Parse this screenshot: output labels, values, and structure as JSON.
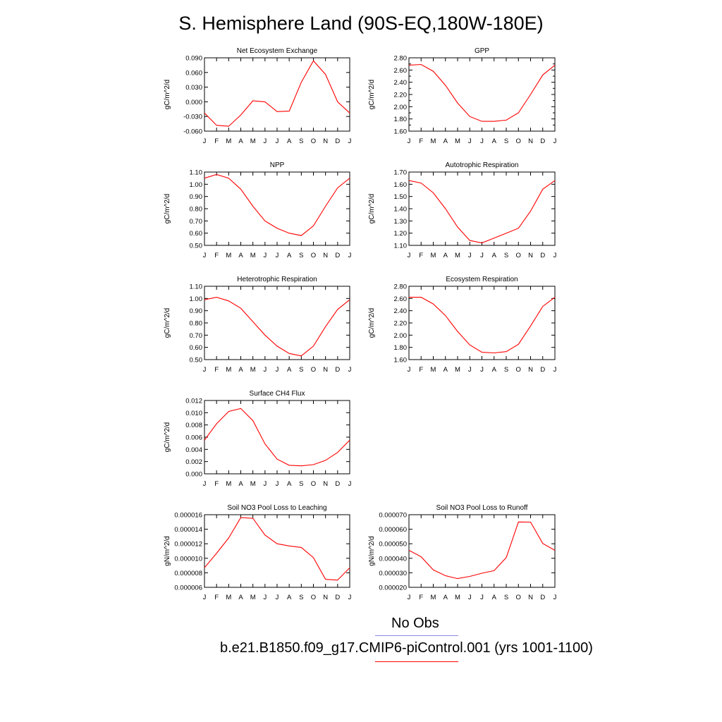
{
  "page": {
    "title": "S. Hemisphere Land (90S-EQ,180W-180E)",
    "legend": {
      "obs_label": "No Obs",
      "obs_color": "#8a8ae6",
      "model_label": "b.e21.B1850.f09_g17.CMIP6-piControl.001 (yrs 1001-1100)",
      "model_color": "#ff0000"
    }
  },
  "chart_data": [
    {
      "type": "line",
      "title": "Net Ecosystem Exchange",
      "ylabel": "gC/m^2/d",
      "x": [
        "J",
        "F",
        "M",
        "A",
        "M",
        "J",
        "J",
        "A",
        "S",
        "O",
        "N",
        "D",
        "J"
      ],
      "ylim": [
        -0.06,
        0.09
      ],
      "yticks": [
        "-0.060",
        "-0.030",
        "0.000",
        "0.030",
        "0.060",
        "0.090"
      ],
      "series": [
        {
          "values": [
            -0.023,
            -0.048,
            -0.05,
            -0.027,
            0.002,
            0.0,
            -0.02,
            -0.019,
            0.04,
            0.084,
            0.056,
            0.0,
            -0.023
          ],
          "color": "#ff0000"
        }
      ]
    },
    {
      "type": "line",
      "title": "GPP",
      "ylabel": "gC/m^2/d",
      "x": [
        "J",
        "F",
        "M",
        "A",
        "M",
        "J",
        "J",
        "A",
        "S",
        "O",
        "N",
        "D",
        "J"
      ],
      "ylim": [
        1.6,
        2.8
      ],
      "yticks": [
        "1.60",
        "1.70",
        "1.80",
        "1.90",
        "2.00",
        "2.10",
        "2.20",
        "2.30",
        "2.40",
        "2.50",
        "2.60",
        "2.70",
        "2.80"
      ],
      "ytick_labels": [
        "1.60",
        "1.80",
        "2.00",
        "2.20",
        "2.40",
        "2.60",
        "2.80"
      ],
      "series": [
        {
          "values": [
            2.68,
            2.69,
            2.58,
            2.35,
            2.06,
            1.84,
            1.76,
            1.76,
            1.78,
            1.9,
            2.2,
            2.52,
            2.68
          ],
          "color": "#ff0000"
        }
      ]
    },
    {
      "type": "line",
      "title": "NPP",
      "ylabel": "gC/m^2/d",
      "x": [
        "J",
        "F",
        "M",
        "A",
        "M",
        "J",
        "J",
        "A",
        "S",
        "O",
        "N",
        "D",
        "J"
      ],
      "ylim": [
        0.5,
        1.1
      ],
      "yticks": [
        "0.50",
        "0.60",
        "0.70",
        "0.80",
        "0.90",
        "1.00",
        "1.10"
      ],
      "series": [
        {
          "values": [
            1.05,
            1.08,
            1.05,
            0.96,
            0.82,
            0.7,
            0.64,
            0.6,
            0.58,
            0.66,
            0.82,
            0.97,
            1.05
          ],
          "color": "#ff0000"
        }
      ]
    },
    {
      "type": "line",
      "title": "Autotrophic Respiration",
      "ylabel": "gC/m^2/d",
      "x": [
        "J",
        "F",
        "M",
        "A",
        "M",
        "J",
        "J",
        "A",
        "S",
        "O",
        "N",
        "D",
        "J"
      ],
      "ylim": [
        1.1,
        1.7
      ],
      "yticks": [
        "1.10",
        "1.20",
        "1.30",
        "1.40",
        "1.50",
        "1.60",
        "1.70"
      ],
      "series": [
        {
          "values": [
            1.63,
            1.61,
            1.53,
            1.4,
            1.25,
            1.14,
            1.12,
            1.16,
            1.2,
            1.24,
            1.38,
            1.56,
            1.63
          ],
          "color": "#ff0000"
        }
      ]
    },
    {
      "type": "line",
      "title": "Heterotrophic Respiration",
      "ylabel": "gC/m^2/d",
      "x": [
        "J",
        "F",
        "M",
        "A",
        "M",
        "J",
        "J",
        "A",
        "S",
        "O",
        "N",
        "D",
        "J"
      ],
      "ylim": [
        0.5,
        1.1
      ],
      "yticks": [
        "0.50",
        "0.60",
        "0.70",
        "0.80",
        "0.90",
        "1.00",
        "1.10"
      ],
      "series": [
        {
          "values": [
            0.99,
            1.01,
            0.98,
            0.92,
            0.81,
            0.7,
            0.61,
            0.55,
            0.53,
            0.61,
            0.77,
            0.91,
            0.99
          ],
          "color": "#ff0000"
        }
      ]
    },
    {
      "type": "line",
      "title": "Ecosystem Respiration",
      "ylabel": "gC/m^2/d",
      "x": [
        "J",
        "F",
        "M",
        "A",
        "M",
        "J",
        "J",
        "A",
        "S",
        "O",
        "N",
        "D",
        "J"
      ],
      "ylim": [
        1.6,
        2.8
      ],
      "yticks": [
        "1.60",
        "1.80",
        "2.00",
        "2.20",
        "2.40",
        "2.60",
        "2.80"
      ],
      "series": [
        {
          "values": [
            2.62,
            2.62,
            2.51,
            2.32,
            2.06,
            1.84,
            1.72,
            1.71,
            1.73,
            1.85,
            2.15,
            2.47,
            2.62
          ],
          "color": "#ff0000"
        }
      ]
    },
    {
      "type": "line",
      "title": "Surface CH4 Flux",
      "ylabel": "gC/m^2/d",
      "x": [
        "J",
        "F",
        "M",
        "A",
        "M",
        "J",
        "J",
        "A",
        "S",
        "O",
        "N",
        "D",
        "J"
      ],
      "ylim": [
        0.0,
        0.012
      ],
      "yticks": [
        "0.000",
        "0.002",
        "0.004",
        "0.006",
        "0.008",
        "0.010",
        "0.012"
      ],
      "series": [
        {
          "values": [
            0.0055,
            0.0082,
            0.0102,
            0.0107,
            0.0087,
            0.0049,
            0.0024,
            0.0014,
            0.0013,
            0.0015,
            0.0022,
            0.0035,
            0.0055
          ],
          "color": "#ff0000"
        }
      ]
    },
    {
      "type": "line",
      "title": "Soil NO3 Pool Loss to Leaching",
      "ylabel": "gN/m^2/d",
      "x": [
        "J",
        "F",
        "M",
        "A",
        "M",
        "J",
        "J",
        "A",
        "S",
        "O",
        "N",
        "D",
        "J"
      ],
      "ylim": [
        6e-06,
        1.6e-05
      ],
      "yticks": [
        "0.000006",
        "0.000008",
        "0.000010",
        "0.000012",
        "0.000014",
        "0.000016"
      ],
      "series": [
        {
          "values": [
            8.7e-06,
            1.07e-05,
            1.28e-05,
            1.56e-05,
            1.55e-05,
            1.32e-05,
            1.2e-05,
            1.17e-05,
            1.15e-05,
            1.01e-05,
            7.1e-06,
            7e-06,
            8.7e-06
          ],
          "color": "#ff0000"
        }
      ]
    },
    {
      "type": "line",
      "title": "Soil NO3 Pool Loss to Runoff",
      "ylabel": "gN/m^2/d",
      "x": [
        "J",
        "F",
        "M",
        "A",
        "M",
        "J",
        "J",
        "A",
        "S",
        "O",
        "N",
        "D",
        "J"
      ],
      "ylim": [
        2e-05,
        7e-05
      ],
      "yticks": [
        "0.000020",
        "0.000030",
        "0.000040",
        "0.000050",
        "0.000060",
        "0.000070"
      ],
      "series": [
        {
          "values": [
            4.55e-05,
            4.1e-05,
            3.2e-05,
            2.8e-05,
            2.6e-05,
            2.75e-05,
            2.97e-05,
            3.15e-05,
            4.05e-05,
            6.5e-05,
            6.49e-05,
            5.02e-05,
            4.55e-05
          ],
          "color": "#ff0000"
        }
      ]
    }
  ]
}
